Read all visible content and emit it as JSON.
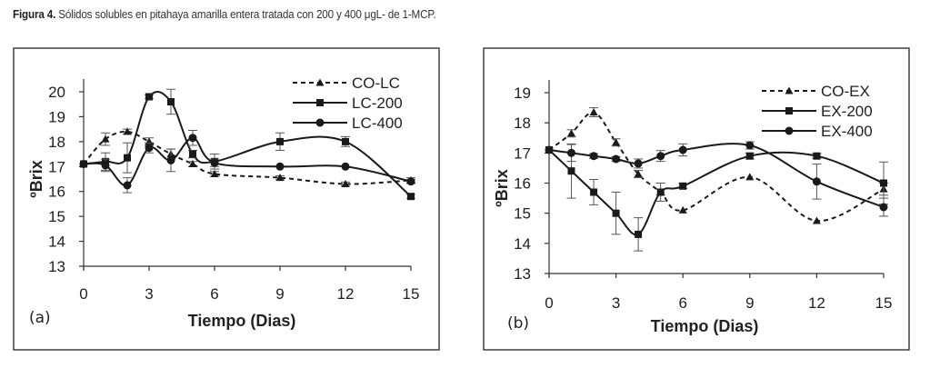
{
  "caption": {
    "prefix": "Figura 4.",
    "text": " Sólidos solubles en pitahaya amarilla entera tratada con 200 y 400 μgL- de 1-MCP."
  },
  "chart_data": [
    {
      "type": "line",
      "panel_label": "(a)",
      "title": "",
      "xlabel": "Tiempo (Dias)",
      "ylabel": "ºBrix",
      "x": [
        0,
        1,
        2,
        3,
        4,
        5,
        6,
        9,
        12,
        15
      ],
      "xticks": [
        0,
        3,
        6,
        9,
        12,
        15
      ],
      "yticks": [
        13,
        14,
        15,
        16,
        17,
        18,
        19,
        20
      ],
      "xlim": [
        0,
        15
      ],
      "ylim": [
        13,
        20
      ],
      "grid": false,
      "legend_position": "top-right",
      "series": [
        {
          "name": "CO-LC",
          "marker": "triangle",
          "line": "dashed",
          "smooth": true,
          "values": [
            17.1,
            18.1,
            18.4,
            18.0,
            17.5,
            17.1,
            16.7,
            16.55,
            16.3,
            16.45
          ],
          "errors": [
            0.05,
            0.25,
            0.1,
            0.15,
            0.2,
            0.1,
            0.1,
            0.08,
            0.08,
            0.1
          ]
        },
        {
          "name": "LC-200",
          "marker": "square",
          "line": "solid",
          "smooth": true,
          "values": [
            17.1,
            17.2,
            17.35,
            19.8,
            19.6,
            17.5,
            17.2,
            18.0,
            18.0,
            15.8
          ],
          "errors": [
            0.05,
            0.35,
            0.6,
            0.08,
            0.5,
            0.15,
            0.3,
            0.35,
            0.2,
            0.08
          ]
        },
        {
          "name": "LC-400",
          "marker": "circle",
          "line": "solid",
          "smooth": true,
          "values": [
            17.1,
            17.05,
            16.25,
            17.75,
            17.25,
            18.15,
            17.15,
            17.0,
            17.0,
            16.4
          ],
          "errors": [
            0.05,
            0.25,
            0.3,
            0.2,
            0.45,
            0.3,
            0.15,
            0.05,
            0.05,
            0.08
          ]
        }
      ]
    },
    {
      "type": "line",
      "panel_label": "(b)",
      "title": "",
      "xlabel": "Tiempo (Dias)",
      "ylabel": "ºBrix",
      "x": [
        0,
        1,
        2,
        3,
        4,
        5,
        6,
        9,
        12,
        15
      ],
      "xticks": [
        0,
        3,
        6,
        9,
        12,
        15
      ],
      "yticks": [
        13,
        14,
        15,
        16,
        17,
        18,
        19
      ],
      "xlim": [
        0,
        15
      ],
      "ylim": [
        13,
        19
      ],
      "grid": false,
      "legend_position": "top-right",
      "series": [
        {
          "name": "CO-EX",
          "marker": "triangle",
          "line": "dashed",
          "smooth": true,
          "values": [
            17.1,
            17.65,
            18.35,
            17.35,
            16.3,
            15.7,
            15.1,
            16.2,
            14.75,
            15.8
          ],
          "errors": [
            0.05,
            0.12,
            0.15,
            0.12,
            0.12,
            0.1,
            0.05,
            0.05,
            0.05,
            0.2
          ]
        },
        {
          "name": "EX-200",
          "marker": "square",
          "line": "solid",
          "smooth": true,
          "values": [
            17.1,
            16.4,
            15.7,
            15.0,
            14.3,
            15.7,
            15.9,
            16.9,
            16.9,
            16.0
          ],
          "errors": [
            0.05,
            0.9,
            0.42,
            0.7,
            0.55,
            0.3,
            0.08,
            0.1,
            0.08,
            0.7
          ]
        },
        {
          "name": "EX-400",
          "marker": "circle",
          "line": "solid",
          "smooth": true,
          "values": [
            17.1,
            17.0,
            16.9,
            16.8,
            16.65,
            16.9,
            17.1,
            17.25,
            16.05,
            15.2
          ],
          "errors": [
            0.05,
            0.28,
            0.08,
            0.08,
            0.15,
            0.18,
            0.2,
            0.12,
            0.58,
            0.3
          ]
        }
      ]
    }
  ]
}
